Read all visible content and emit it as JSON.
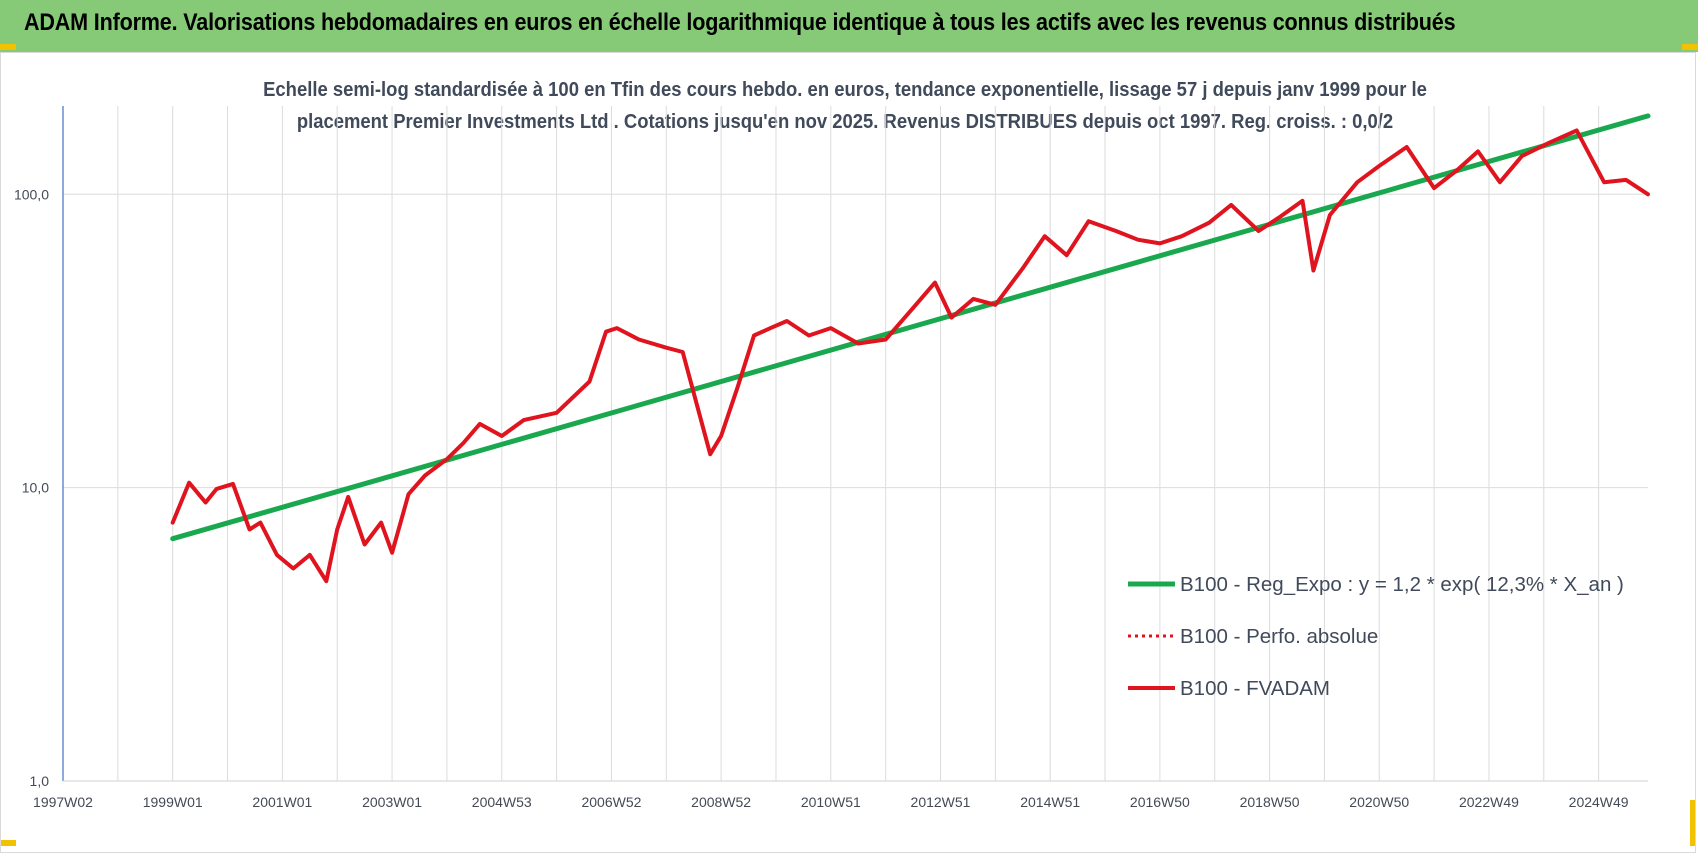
{
  "header": {
    "title": "ADAM Informe. Valorisations hebdomadaires en euros en échelle logarithmique identique à tous les actifs avec les revenus connus distribués"
  },
  "chart_data": {
    "type": "line",
    "subtitle_line1": "Echelle semi-log standardisée à 100 en Tfin des cours hebdo. en euros, tendance exponentielle, lissage 57 j depuis janv 1999 pour le",
    "subtitle_line2": "placement Premier Investments Ltd . Cotations jusqu'en nov 2025. Revenus DISTRIBUES depuis oct 1997. Reg. croiss. : 0,0/2",
    "y_scale": "log",
    "ylim": [
      1,
      200
    ],
    "y_ticks": [
      "1,0",
      "10,0",
      "100,0"
    ],
    "y_tick_values": [
      1,
      10,
      100
    ],
    "x_ticks": [
      "1997W02",
      "1999W01",
      "2001W01",
      "2003W01",
      "2004W53",
      "2006W52",
      "2008W52",
      "2010W51",
      "2012W51",
      "2014W51",
      "2016W50",
      "2018W50",
      "2020W50",
      "2022W49",
      "2024W49"
    ],
    "x_tick_years": [
      1997.0,
      1999.0,
      2001.0,
      2003.0,
      2005.0,
      2007.0,
      2009.0,
      2011.0,
      2013.0,
      2015.0,
      2017.0,
      2019.0,
      2021.0,
      2023.0,
      2025.0
    ],
    "xlim": [
      1997.0,
      2025.9
    ],
    "grid": "vertical and horizontal major",
    "legend_position": "right",
    "legend": [
      {
        "label": "B100 - Reg_Expo : y = 1,2 * exp( 12,3% *  X_an )",
        "style": "solid-thick",
        "color": "#1aa84f"
      },
      {
        "label": "B100 - Perfo. absolue",
        "style": "dotted",
        "color": "#e0141e"
      },
      {
        "label": "B100 - FVADAM",
        "style": "solid",
        "color": "#e0141e"
      }
    ],
    "series": [
      {
        "name": "B100 - Reg_Expo : y = 1,2 * exp( 12,3% *  X_an )",
        "color": "#1aa84f",
        "x": [
          1999.0,
          2025.9
        ],
        "y": [
          6.7,
          185
        ]
      },
      {
        "name": "B100 - FVADAM",
        "color": "#e0141e",
        "x": [
          1999.0,
          1999.3,
          1999.6,
          1999.8,
          2000.1,
          2000.4,
          2000.6,
          2000.9,
          2001.2,
          2001.5,
          2001.8,
          2002.0,
          2002.2,
          2002.5,
          2002.8,
          2003.0,
          2003.3,
          2003.6,
          2004.0,
          2004.3,
          2004.6,
          2005.0,
          2005.4,
          2006.0,
          2006.6,
          2006.9,
          2007.1,
          2007.5,
          2008.0,
          2008.3,
          2008.8,
          2009.0,
          2009.3,
          2009.6,
          2009.9,
          2010.2,
          2010.6,
          2011.0,
          2011.5,
          2012.0,
          2012.5,
          2012.9,
          2013.2,
          2013.6,
          2014.0,
          2014.5,
          2014.9,
          2015.3,
          2015.7,
          2016.2,
          2016.6,
          2017.0,
          2017.4,
          2017.9,
          2018.3,
          2018.8,
          2019.2,
          2019.6,
          2019.8,
          2020.1,
          2020.6,
          2021.0,
          2021.5,
          2022.0,
          2022.4,
          2022.8,
          2023.2,
          2023.6,
          2024.1,
          2024.6,
          2025.1,
          2025.5,
          2025.9
        ],
        "y": [
          7.6,
          10.4,
          8.9,
          9.9,
          10.3,
          7.2,
          7.6,
          5.9,
          5.3,
          5.9,
          4.8,
          7.2,
          9.3,
          6.4,
          7.6,
          6.0,
          9.5,
          11.0,
          12.5,
          14.2,
          16.5,
          15.0,
          17.0,
          18.0,
          23.0,
          34.0,
          35.0,
          32.0,
          30.0,
          29.0,
          13.0,
          15.0,
          22.0,
          33.0,
          35.0,
          37.0,
          33.0,
          35.0,
          31.0,
          32.0,
          41.0,
          50.0,
          38.0,
          44.0,
          42.0,
          56.0,
          72.0,
          62.0,
          81.0,
          75.0,
          70.0,
          68.0,
          72.0,
          80.0,
          92.0,
          75.0,
          84.0,
          95.0,
          55.0,
          85.0,
          110.0,
          125.0,
          145.0,
          105.0,
          120.0,
          140.0,
          110.0,
          135.0,
          150.0,
          165.0,
          110.0,
          112.0,
          100.0
        ]
      }
    ]
  }
}
